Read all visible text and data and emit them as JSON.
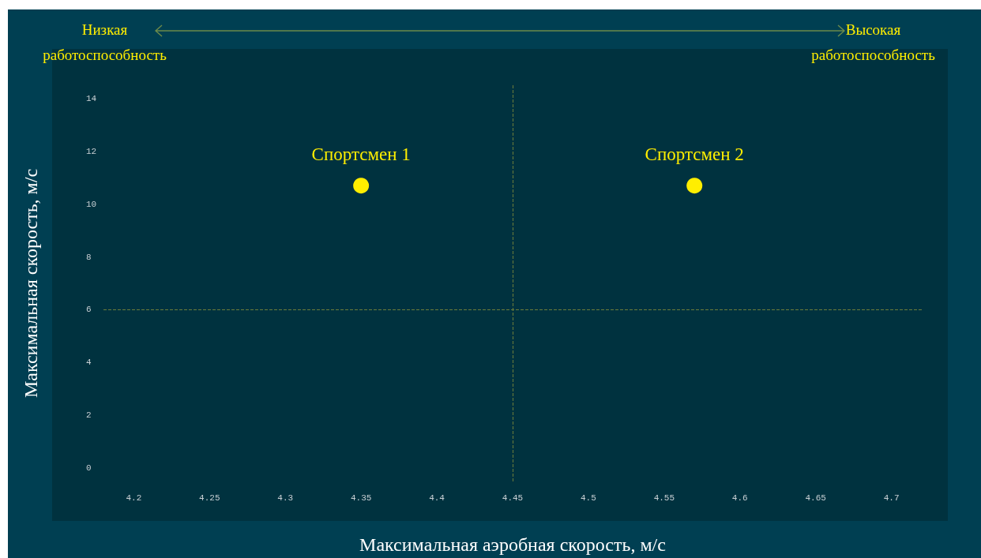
{
  "chart_data": {
    "type": "scatter",
    "xlabel": "Максимальная аэробная скорость, м/с",
    "ylabel": "Максимальная скорость, м/с",
    "annotations": [
      "Низкая работоспособность",
      "Высокая работоспособность"
    ],
    "series": [
      {
        "name": "Спортсмен 1",
        "color": "#ffee00",
        "x": [
          4.35
        ],
        "values": [
          10.7
        ]
      },
      {
        "name": "Спортсмен 2",
        "color": "#ffee00",
        "x": [
          4.57
        ],
        "values": [
          10.7
        ]
      }
    ],
    "xlim": [
      4.18,
      4.72
    ],
    "xticks": [
      4.2,
      4.25,
      4.3,
      4.35,
      4.4,
      4.45,
      4.5,
      4.55,
      4.6,
      4.65,
      4.7
    ],
    "ylim": [
      -0.5,
      14.5
    ],
    "yticks": [
      0,
      2,
      4,
      6,
      8,
      10,
      12,
      14
    ],
    "ref_lines": [
      {
        "axis": "x",
        "value": 4.45,
        "color": "#6b7d3a",
        "line_style": "dashed"
      },
      {
        "axis": "y",
        "value": 6,
        "color": "#6b7d3a",
        "line_style": "dashed"
      }
    ],
    "grid": false,
    "legend": false,
    "marker": "circle"
  }
}
